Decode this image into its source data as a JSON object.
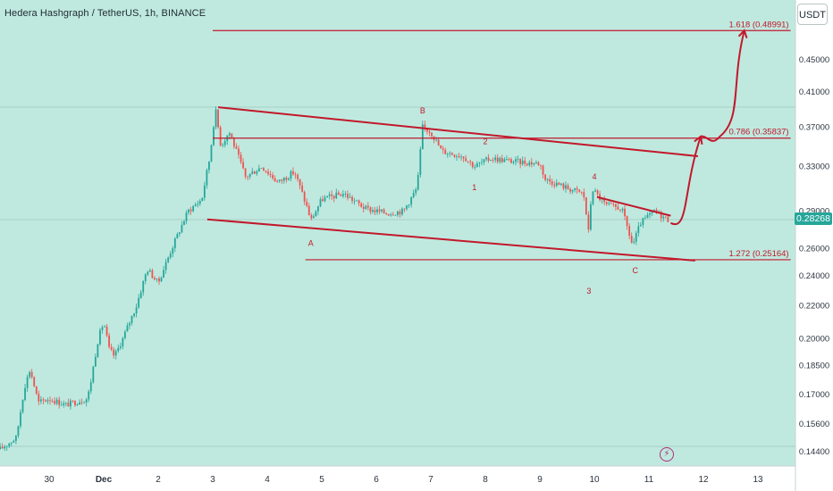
{
  "header": {
    "title": "Hedera Hashgraph / TetherUS, 1h, BINANCE",
    "currency_button": "USDT",
    "last_price_badge": "0.28268"
  },
  "colors": {
    "background": "#bfe9df",
    "axis_background": "#ffffff",
    "up_candle": "#26a69a",
    "down_candle": "#ef5350",
    "drawing_red": "#c2182b",
    "price_badge": "#26a69a",
    "bolt_icon": "#b0307a"
  },
  "icons": {
    "bolt": "lightning-bolt-icon"
  },
  "chart_data": {
    "type": "candlestick",
    "title": "Hedera Hashgraph / TetherUS, 1h, BINANCE",
    "x_axis_labels": [
      "30",
      "Dec",
      "2",
      "3",
      "4",
      "5",
      "6",
      "7",
      "8",
      "9",
      "10",
      "11",
      "12",
      "13"
    ],
    "x_axis_days": [
      -1,
      0,
      1,
      2,
      3,
      4,
      5,
      6,
      7,
      8,
      9,
      10,
      11,
      12
    ],
    "y_axis_labels": [
      "0.45000",
      "0.41000",
      "0.37000",
      "0.33000",
      "0.29000",
      "0.26000",
      "0.24000",
      "0.22000",
      "0.20000",
      "0.18500",
      "0.17000",
      "0.15600",
      "0.14400"
    ],
    "y_axis_values": [
      0.45,
      0.41,
      0.37,
      0.33,
      0.29,
      0.26,
      0.24,
      0.22,
      0.2,
      0.185,
      0.17,
      0.156,
      0.144
    ],
    "y_scale": "log",
    "grid": false,
    "last_price": 0.28268,
    "price_path": [
      [
        -1.9,
        0.145
      ],
      [
        -1.6,
        0.15
      ],
      [
        -1.45,
        0.174
      ],
      [
        -1.35,
        0.183
      ],
      [
        -1.2,
        0.166
      ],
      [
        -1.0,
        0.168
      ],
      [
        -0.7,
        0.165
      ],
      [
        -0.3,
        0.168
      ],
      [
        -0.25,
        0.174
      ],
      [
        -0.1,
        0.2
      ],
      [
        0.0,
        0.21
      ],
      [
        0.1,
        0.194
      ],
      [
        0.2,
        0.19
      ],
      [
        0.35,
        0.2
      ],
      [
        0.6,
        0.22
      ],
      [
        0.8,
        0.245
      ],
      [
        1.0,
        0.235
      ],
      [
        1.25,
        0.26
      ],
      [
        1.55,
        0.29
      ],
      [
        1.8,
        0.3
      ],
      [
        1.95,
        0.34
      ],
      [
        2.05,
        0.39
      ],
      [
        2.15,
        0.35
      ],
      [
        2.3,
        0.365
      ],
      [
        2.6,
        0.32
      ],
      [
        2.9,
        0.33
      ],
      [
        3.2,
        0.315
      ],
      [
        3.5,
        0.325
      ],
      [
        3.75,
        0.29
      ],
      [
        3.8,
        0.282
      ],
      [
        4.0,
        0.3
      ],
      [
        4.4,
        0.305
      ],
      [
        4.8,
        0.292
      ],
      [
        5.2,
        0.288
      ],
      [
        5.5,
        0.29
      ],
      [
        5.75,
        0.31
      ],
      [
        5.85,
        0.37
      ],
      [
        6.0,
        0.365
      ],
      [
        6.2,
        0.345
      ],
      [
        6.6,
        0.34
      ],
      [
        6.8,
        0.33
      ],
      [
        7.1,
        0.338
      ],
      [
        7.5,
        0.335
      ],
      [
        8.0,
        0.333
      ],
      [
        8.1,
        0.318
      ],
      [
        8.5,
        0.31
      ],
      [
        8.8,
        0.305
      ],
      [
        8.9,
        0.27
      ],
      [
        8.95,
        0.31
      ],
      [
        9.2,
        0.295
      ],
      [
        9.5,
        0.292
      ],
      [
        9.7,
        0.262
      ],
      [
        9.85,
        0.28
      ],
      [
        10.1,
        0.29
      ],
      [
        10.35,
        0.28268
      ]
    ],
    "annotations": {
      "wave_labels": [
        {
          "text": "A",
          "x": 3.8,
          "y": 0.262
        },
        {
          "text": "B",
          "x": 5.85,
          "y": 0.385
        },
        {
          "text": "1",
          "x": 6.8,
          "y": 0.308
        },
        {
          "text": "2",
          "x": 7.0,
          "y": 0.352
        },
        {
          "text": "3",
          "x": 8.9,
          "y": 0.228
        },
        {
          "text": "4",
          "x": 9.0,
          "y": 0.318
        },
        {
          "text": "C",
          "x": 9.75,
          "y": 0.242
        }
      ],
      "fibonacci_levels": [
        {
          "label": "1.618 (0.48991)",
          "value": 0.48991
        },
        {
          "label": "0.786 (0.35837)",
          "value": 0.35837
        },
        {
          "label": "1.272 (0.25164)",
          "value": 0.25164
        }
      ],
      "channel_upper": [
        [
          2.1,
          0.392
        ],
        [
          10.9,
          0.34
        ]
      ],
      "channel_lower": [
        [
          1.9,
          0.283
        ],
        [
          10.85,
          0.251
        ]
      ],
      "small_wedge": [
        [
          9.05,
          0.302
        ],
        [
          10.4,
          0.286
        ]
      ],
      "projection_path": [
        [
          10.4,
          0.28
        ],
        [
          10.95,
          0.36
        ],
        [
          11.3,
          0.36
        ],
        [
          11.75,
          0.49
        ]
      ]
    }
  }
}
